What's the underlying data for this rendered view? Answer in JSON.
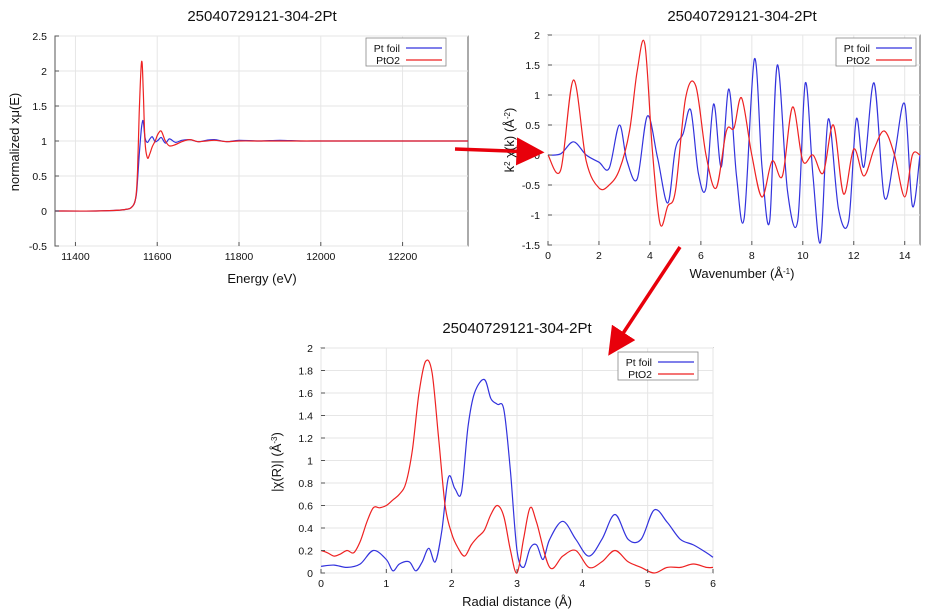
{
  "colors": {
    "pt_foil": "#3333dd",
    "pto2": "#ee2222",
    "arrow": "#e8000b"
  },
  "chart_data": [
    {
      "type": "line",
      "title": "25040729121-304-2Pt",
      "xlabel": "Energy    (eV)",
      "ylabel": "normalized xμ(E)",
      "ylabel_sup": "",
      "xlim": [
        11350,
        12360
      ],
      "ylim": [
        -0.5,
        2.5
      ],
      "xticks": [
        11400,
        11600,
        11800,
        12000,
        12200
      ],
      "yticks": [
        -0.5,
        0,
        0.5,
        1,
        1.5,
        2,
        2.5
      ],
      "grid": true,
      "legend": "top-right",
      "series": [
        {
          "name": "Pt foil",
          "color_key": "pt_foil",
          "x": [
            11350,
            11450,
            11520,
            11540,
            11548,
            11552,
            11556,
            11560,
            11563,
            11566,
            11570,
            11576,
            11582,
            11588,
            11595,
            11602,
            11610,
            11620,
            11630,
            11645,
            11660,
            11680,
            11700,
            11720,
            11740,
            11770,
            11800,
            11850,
            11900,
            11950,
            12000,
            12100,
            12200,
            12300,
            12360
          ],
          "y": [
            0.0,
            0.0,
            0.02,
            0.07,
            0.2,
            0.45,
            0.8,
            1.1,
            1.25,
            1.28,
            1.05,
            0.98,
            1.03,
            1.06,
            0.99,
            1.01,
            1.05,
            0.97,
            1.03,
            0.98,
            1.01,
            1.02,
            0.99,
            1.01,
            1.02,
            0.99,
            1.01,
            1.0,
            1.01,
            1.0,
            1.0,
            1.0,
            1.0,
            1.0,
            1.0
          ]
        },
        {
          "name": "PtO2",
          "color_key": "pto2",
          "x": [
            11350,
            11450,
            11520,
            11540,
            11548,
            11552,
            11556,
            11560,
            11563,
            11566,
            11570,
            11576,
            11582,
            11588,
            11595,
            11602,
            11610,
            11620,
            11630,
            11645,
            11660,
            11680,
            11700,
            11720,
            11740,
            11770,
            11800,
            11850,
            11900,
            11950,
            12000,
            12100,
            12200,
            12300,
            12360
          ],
          "y": [
            0.0,
            0.0,
            0.02,
            0.07,
            0.22,
            0.6,
            1.4,
            2.0,
            2.12,
            1.7,
            1.0,
            0.76,
            0.82,
            0.92,
            1.0,
            1.1,
            1.14,
            1.0,
            0.93,
            0.95,
            0.99,
            1.02,
            0.99,
            1.0,
            1.01,
            0.99,
            1.0,
            1.0,
            1.0,
            1.0,
            1.0,
            1.0,
            1.0,
            1.0,
            1.0
          ]
        }
      ]
    },
    {
      "type": "line",
      "title": "25040729121-304-2Pt",
      "xlabel": "Wavenumber    (Å",
      "xlabel_sup": "-1",
      "xlabel_tail": ")",
      "ylabel": "k",
      "ylabel_sup": "2",
      "ylabel_tail": " χ(k)    (Å",
      "ylabel_sup2": "-2",
      "ylabel_tail2": ")",
      "xlim": [
        0,
        14.6
      ],
      "ylim": [
        -1.5,
        2
      ],
      "xticks": [
        0,
        2,
        4,
        6,
        8,
        10,
        12,
        14
      ],
      "yticks": [
        -1.5,
        -1,
        -0.5,
        0,
        0.5,
        1,
        1.5,
        2
      ],
      "grid": true,
      "legend": "top-right",
      "series": [
        {
          "name": "Pt foil",
          "color_key": "pt_foil",
          "x": [
            0,
            0.5,
            1.0,
            1.5,
            2.0,
            2.4,
            2.8,
            3.1,
            3.5,
            3.9,
            4.3,
            4.7,
            5.0,
            5.3,
            5.6,
            5.9,
            6.2,
            6.5,
            6.8,
            7.1,
            7.4,
            7.7,
            8.1,
            8.4,
            8.7,
            9.0,
            9.4,
            9.8,
            10.1,
            10.4,
            10.7,
            11.0,
            11.4,
            11.8,
            12.1,
            12.4,
            12.8,
            13.2,
            13.6,
            14.0,
            14.3,
            14.6
          ],
          "y": [
            0,
            0.02,
            0.22,
            0.0,
            -0.12,
            -0.22,
            0.5,
            -0.1,
            -0.4,
            0.65,
            -0.05,
            -0.8,
            0.1,
            0.35,
            0.75,
            -0.3,
            -0.55,
            0.85,
            -0.2,
            1.1,
            -0.35,
            -1.05,
            1.6,
            -0.2,
            -1.1,
            1.5,
            -0.6,
            -1.1,
            1.2,
            -0.35,
            -1.45,
            0.6,
            -0.9,
            -1.1,
            0.6,
            -0.2,
            1.2,
            -0.7,
            0.0,
            0.85,
            -0.85,
            0.0
          ]
        },
        {
          "name": "PtO2",
          "color_key": "pto2",
          "x": [
            0,
            0.5,
            1.0,
            1.5,
            2.0,
            2.4,
            2.8,
            3.2,
            3.5,
            3.8,
            4.1,
            4.4,
            4.7,
            5.0,
            5.4,
            5.8,
            6.2,
            6.6,
            7.0,
            7.3,
            7.6,
            8.0,
            8.4,
            8.8,
            9.2,
            9.6,
            10.0,
            10.4,
            10.8,
            11.2,
            11.6,
            12.0,
            12.4,
            12.8,
            13.2,
            13.6,
            14.0,
            14.3,
            14.6
          ],
          "y": [
            0,
            -0.25,
            1.25,
            -0.1,
            -0.55,
            -0.5,
            -0.25,
            0.4,
            1.4,
            1.85,
            0.05,
            -1.15,
            -0.85,
            -0.6,
            0.95,
            1.15,
            0.0,
            -0.55,
            0.4,
            0.45,
            0.95,
            0.0,
            -0.7,
            -0.1,
            -0.35,
            0.8,
            -0.1,
            0.0,
            -0.3,
            0.5,
            -0.65,
            0.1,
            -0.35,
            0.1,
            0.4,
            0.0,
            -0.7,
            0.0,
            0.0
          ]
        }
      ]
    },
    {
      "type": "line",
      "title": "25040729121-304-2Pt",
      "xlabel": "Radial distance    (Å)",
      "ylabel": "|χ(R)|    (Å",
      "ylabel_sup": "-3",
      "ylabel_tail": ")",
      "xlim": [
        0,
        6
      ],
      "ylim": [
        0,
        2
      ],
      "xticks": [
        0,
        1,
        2,
        3,
        4,
        5,
        6
      ],
      "yticks": [
        0,
        0.2,
        0.4,
        0.6,
        0.8,
        1,
        1.2,
        1.4,
        1.6,
        1.8,
        2
      ],
      "grid": true,
      "legend": "top-right",
      "series": [
        {
          "name": "Pt foil",
          "color_key": "pt_foil",
          "x": [
            0,
            0.2,
            0.4,
            0.6,
            0.8,
            1.0,
            1.1,
            1.2,
            1.35,
            1.45,
            1.55,
            1.65,
            1.75,
            1.85,
            1.95,
            2.05,
            2.15,
            2.25,
            2.35,
            2.5,
            2.6,
            2.7,
            2.8,
            2.9,
            3.0,
            3.1,
            3.2,
            3.3,
            3.4,
            3.5,
            3.7,
            3.9,
            4.1,
            4.3,
            4.5,
            4.7,
            4.9,
            5.1,
            5.3,
            5.5,
            5.7,
            5.9,
            6.0
          ],
          "y": [
            0.06,
            0.07,
            0.05,
            0.08,
            0.2,
            0.12,
            0.02,
            0.08,
            0.1,
            0.02,
            0.1,
            0.22,
            0.1,
            0.38,
            0.85,
            0.75,
            0.72,
            1.3,
            1.6,
            1.72,
            1.55,
            1.5,
            1.45,
            0.9,
            0.2,
            0.05,
            0.22,
            0.25,
            0.12,
            0.3,
            0.46,
            0.3,
            0.15,
            0.3,
            0.52,
            0.3,
            0.3,
            0.56,
            0.45,
            0.3,
            0.25,
            0.18,
            0.14
          ]
        },
        {
          "name": "PtO2",
          "color_key": "pto2",
          "x": [
            0,
            0.1,
            0.2,
            0.3,
            0.4,
            0.5,
            0.6,
            0.7,
            0.8,
            0.9,
            1.0,
            1.1,
            1.2,
            1.3,
            1.4,
            1.5,
            1.6,
            1.7,
            1.8,
            1.9,
            2.0,
            2.1,
            2.2,
            2.3,
            2.4,
            2.5,
            2.6,
            2.7,
            2.8,
            2.9,
            3.0,
            3.1,
            3.2,
            3.3,
            3.5,
            3.7,
            3.9,
            4.1,
            4.3,
            4.5,
            4.7,
            4.9,
            5.1,
            5.3,
            5.5,
            5.7,
            5.9,
            6.0
          ],
          "y": [
            0.2,
            0.18,
            0.15,
            0.17,
            0.2,
            0.18,
            0.28,
            0.45,
            0.58,
            0.58,
            0.6,
            0.65,
            0.7,
            0.8,
            1.1,
            1.6,
            1.88,
            1.78,
            1.2,
            0.6,
            0.35,
            0.22,
            0.15,
            0.25,
            0.32,
            0.38,
            0.52,
            0.6,
            0.5,
            0.2,
            0.0,
            0.3,
            0.58,
            0.45,
            0.05,
            0.15,
            0.2,
            0.05,
            0.1,
            0.2,
            0.1,
            0.05,
            0.0,
            0.05,
            0.05,
            0.08,
            0.05,
            0.05
          ]
        }
      ]
    }
  ]
}
